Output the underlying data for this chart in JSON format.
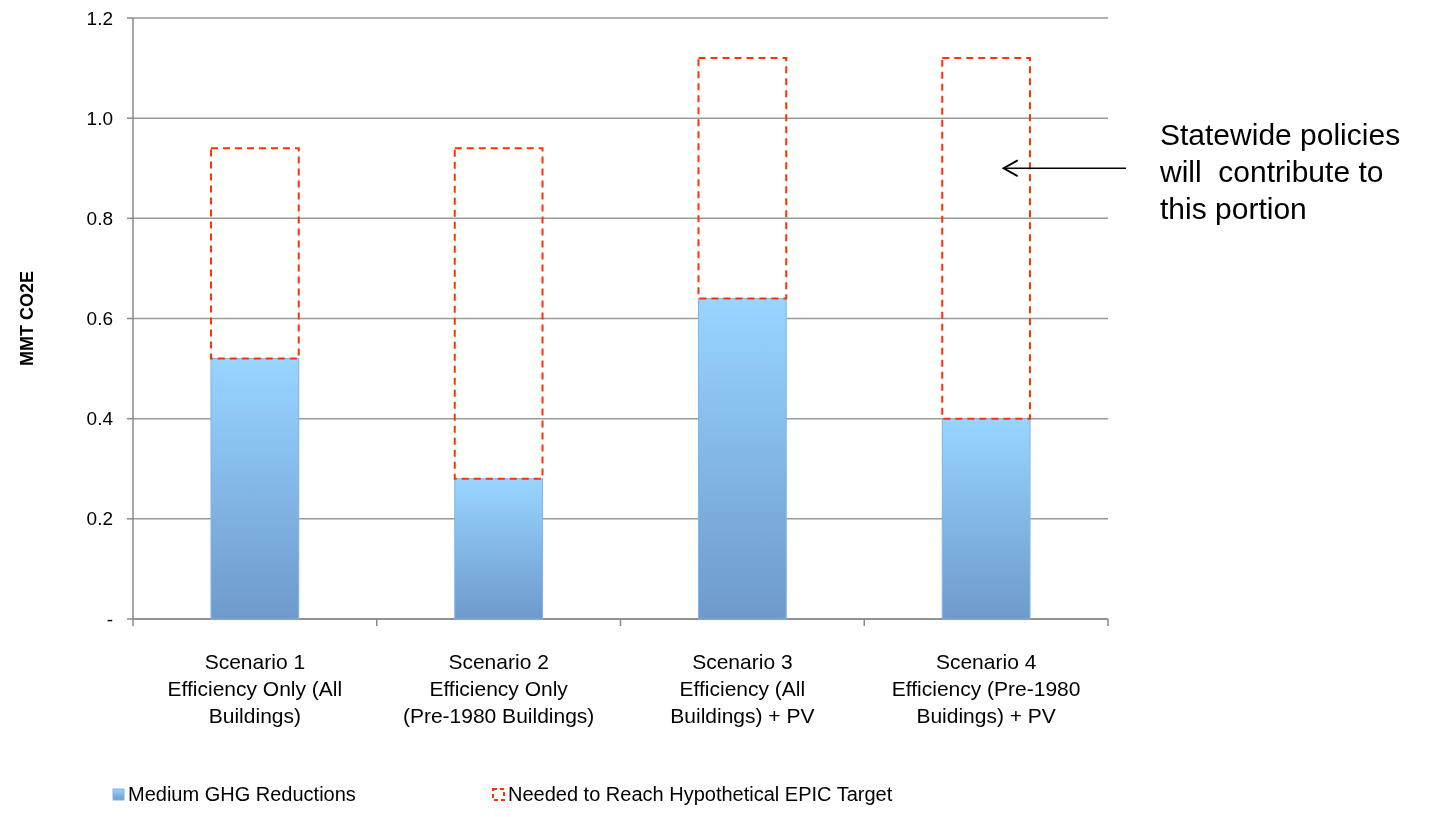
{
  "chart_data": {
    "type": "bar",
    "stacked": true,
    "ylabel": "MMT CO2E",
    "categories": [
      "Scenario 1\nEfficiency Only (All\nBuildings)",
      "Scenario 2\nEfficiency Only\n(Pre-1980 Buildings)",
      "Scenario 3\nEfficiency (All\nBuildings) + PV",
      "Scenario 4\nEfficiency (Pre-1980\nBuidings) + PV"
    ],
    "series": [
      {
        "name": "Medium GHG Reductions",
        "color": "#7fb2ea",
        "values": [
          0.52,
          0.28,
          0.64,
          0.4
        ]
      },
      {
        "name": "Needed to Reach Hypothetical EPIC Target",
        "color": "#ff3300",
        "line_style": "dashed",
        "values": [
          0.42,
          0.66,
          0.48,
          0.72
        ]
      }
    ],
    "ylim": [
      0,
      1.2
    ],
    "yticks": [
      {
        "value": 0,
        "label": "-"
      },
      {
        "value": 0.2,
        "label": "0.2"
      },
      {
        "value": 0.4,
        "label": "0.4"
      },
      {
        "value": 0.6,
        "label": "0.6"
      },
      {
        "value": 0.8,
        "label": "0.8"
      },
      {
        "value": 1.0,
        "label": "1.0"
      },
      {
        "value": 1.2,
        "label": "1.2"
      }
    ],
    "grid": "y",
    "legend": "bottom",
    "annotations": [
      "Statewide policies\nwill  contribute to\nthis portion"
    ]
  }
}
